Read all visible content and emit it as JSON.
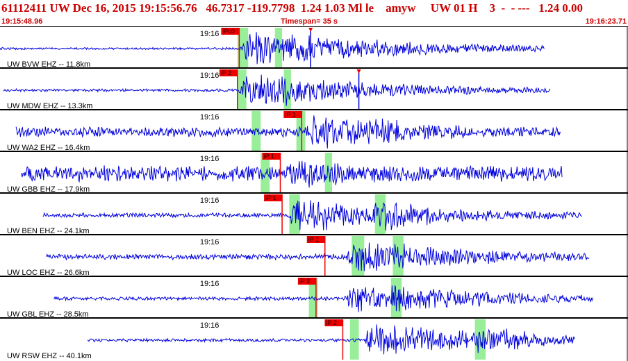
{
  "header": {
    "title": "61112411 UW Dec 16, 2015 19:15:56.76   46.7317 -119.7798  1.24 1.03 Ml le    amyw     UW 01 H    3  -  - ---   1.24 0.00",
    "start_time": "19:15:48.96",
    "timespan": "Timespan=  35 s",
    "end_time": "19:16:23.71"
  },
  "colors": {
    "trace": "#0000dd",
    "pick_flag": "#ee0000",
    "pick_band": "#99ee99",
    "header_text": "#cc0000",
    "divider": "#000000"
  },
  "time_marker_label": "19:16",
  "traces": [
    {
      "label": "UW BVW EHZ -- 11.8km",
      "pick": "iPc0",
      "pick_t": 13.4,
      "s_t": 16.0,
      "trace_start": 0.0,
      "trace_end": 30.5,
      "onset_t": 13.4,
      "noise": 0.05,
      "amp": 0.9,
      "bands": [
        [
          13.3,
          13.9
        ],
        [
          15.4,
          15.8
        ]
      ],
      "extra_marks": [
        17.4
      ]
    },
    {
      "label": "UW MDW EHZ -- 13.3km",
      "pick": "iP 2",
      "pick_t": 13.3,
      "s_t": 15.8,
      "trace_start": 0.2,
      "trace_end": 30.8,
      "onset_t": 13.3,
      "noise": 0.06,
      "amp": 0.8,
      "bands": [
        [
          13.3,
          13.8
        ],
        [
          15.9,
          16.3
        ]
      ],
      "extra_marks": [
        20.1
      ]
    },
    {
      "label": "UW WA2 EHZ -- 16.4km",
      "pick": "iP 1",
      "pick_t": 16.9,
      "s_t": 20.3,
      "trace_start": 0.9,
      "trace_end": 31.4,
      "onset_t": 16.9,
      "noise": 0.22,
      "amp": 0.85,
      "bands": [
        [
          14.1,
          14.6
        ],
        [
          16.6,
          17.1
        ]
      ],
      "extra_marks": []
    },
    {
      "label": "UW GBB EHZ -- 17.9km",
      "pick": "iP 1",
      "pick_t": 15.7,
      "s_t": 17.2,
      "trace_start": 1.2,
      "trace_end": 31.5,
      "onset_t": 15.8,
      "noise": 0.35,
      "amp": 0.7,
      "bands": [
        [
          14.6,
          15.1
        ],
        [
          18.2,
          18.6
        ]
      ],
      "extra_marks": []
    },
    {
      "label": "UW BEN EHZ -- 24.1km",
      "pick": "iP 1",
      "pick_t": 15.8,
      "s_t": 21.0,
      "trace_start": 2.4,
      "trace_end": 32.6,
      "onset_t": 16.0,
      "noise": 0.1,
      "amp": 0.85,
      "bands": [
        [
          16.2,
          16.8
        ],
        [
          21.0,
          21.6
        ]
      ],
      "extra_marks": []
    },
    {
      "label": "UW LOC EHZ -- 26.6km",
      "pick": "iP 1",
      "pick_t": 18.2,
      "s_t": 21.8,
      "trace_start": 2.6,
      "trace_end": 33.0,
      "onset_t": 19.3,
      "noise": 0.12,
      "amp": 0.75,
      "bands": [
        [
          19.7,
          20.4
        ],
        [
          22.0,
          22.6
        ]
      ],
      "extra_marks": []
    },
    {
      "label": "UW GBL EHZ -- 28.5km",
      "pick": "iP 2",
      "pick_t": 17.7,
      "s_t": 21.5,
      "trace_start": 3.0,
      "trace_end": 33.2,
      "onset_t": 19.2,
      "noise": 0.08,
      "amp": 0.8,
      "bands": [
        [
          17.3,
          17.8
        ],
        [
          21.9,
          22.5
        ]
      ],
      "extra_marks": []
    },
    {
      "label": "UW RSW EHZ -- 40.1km",
      "pick": "iP 2",
      "pick_t": 19.2,
      "s_t": 26.5,
      "trace_start": 4.9,
      "trace_end": 32.2,
      "onset_t": 20.2,
      "noise": 0.07,
      "amp": 0.8,
      "bands": [
        [
          19.6,
          20.1
        ],
        [
          26.6,
          27.2
        ]
      ],
      "extra_marks": []
    }
  ]
}
